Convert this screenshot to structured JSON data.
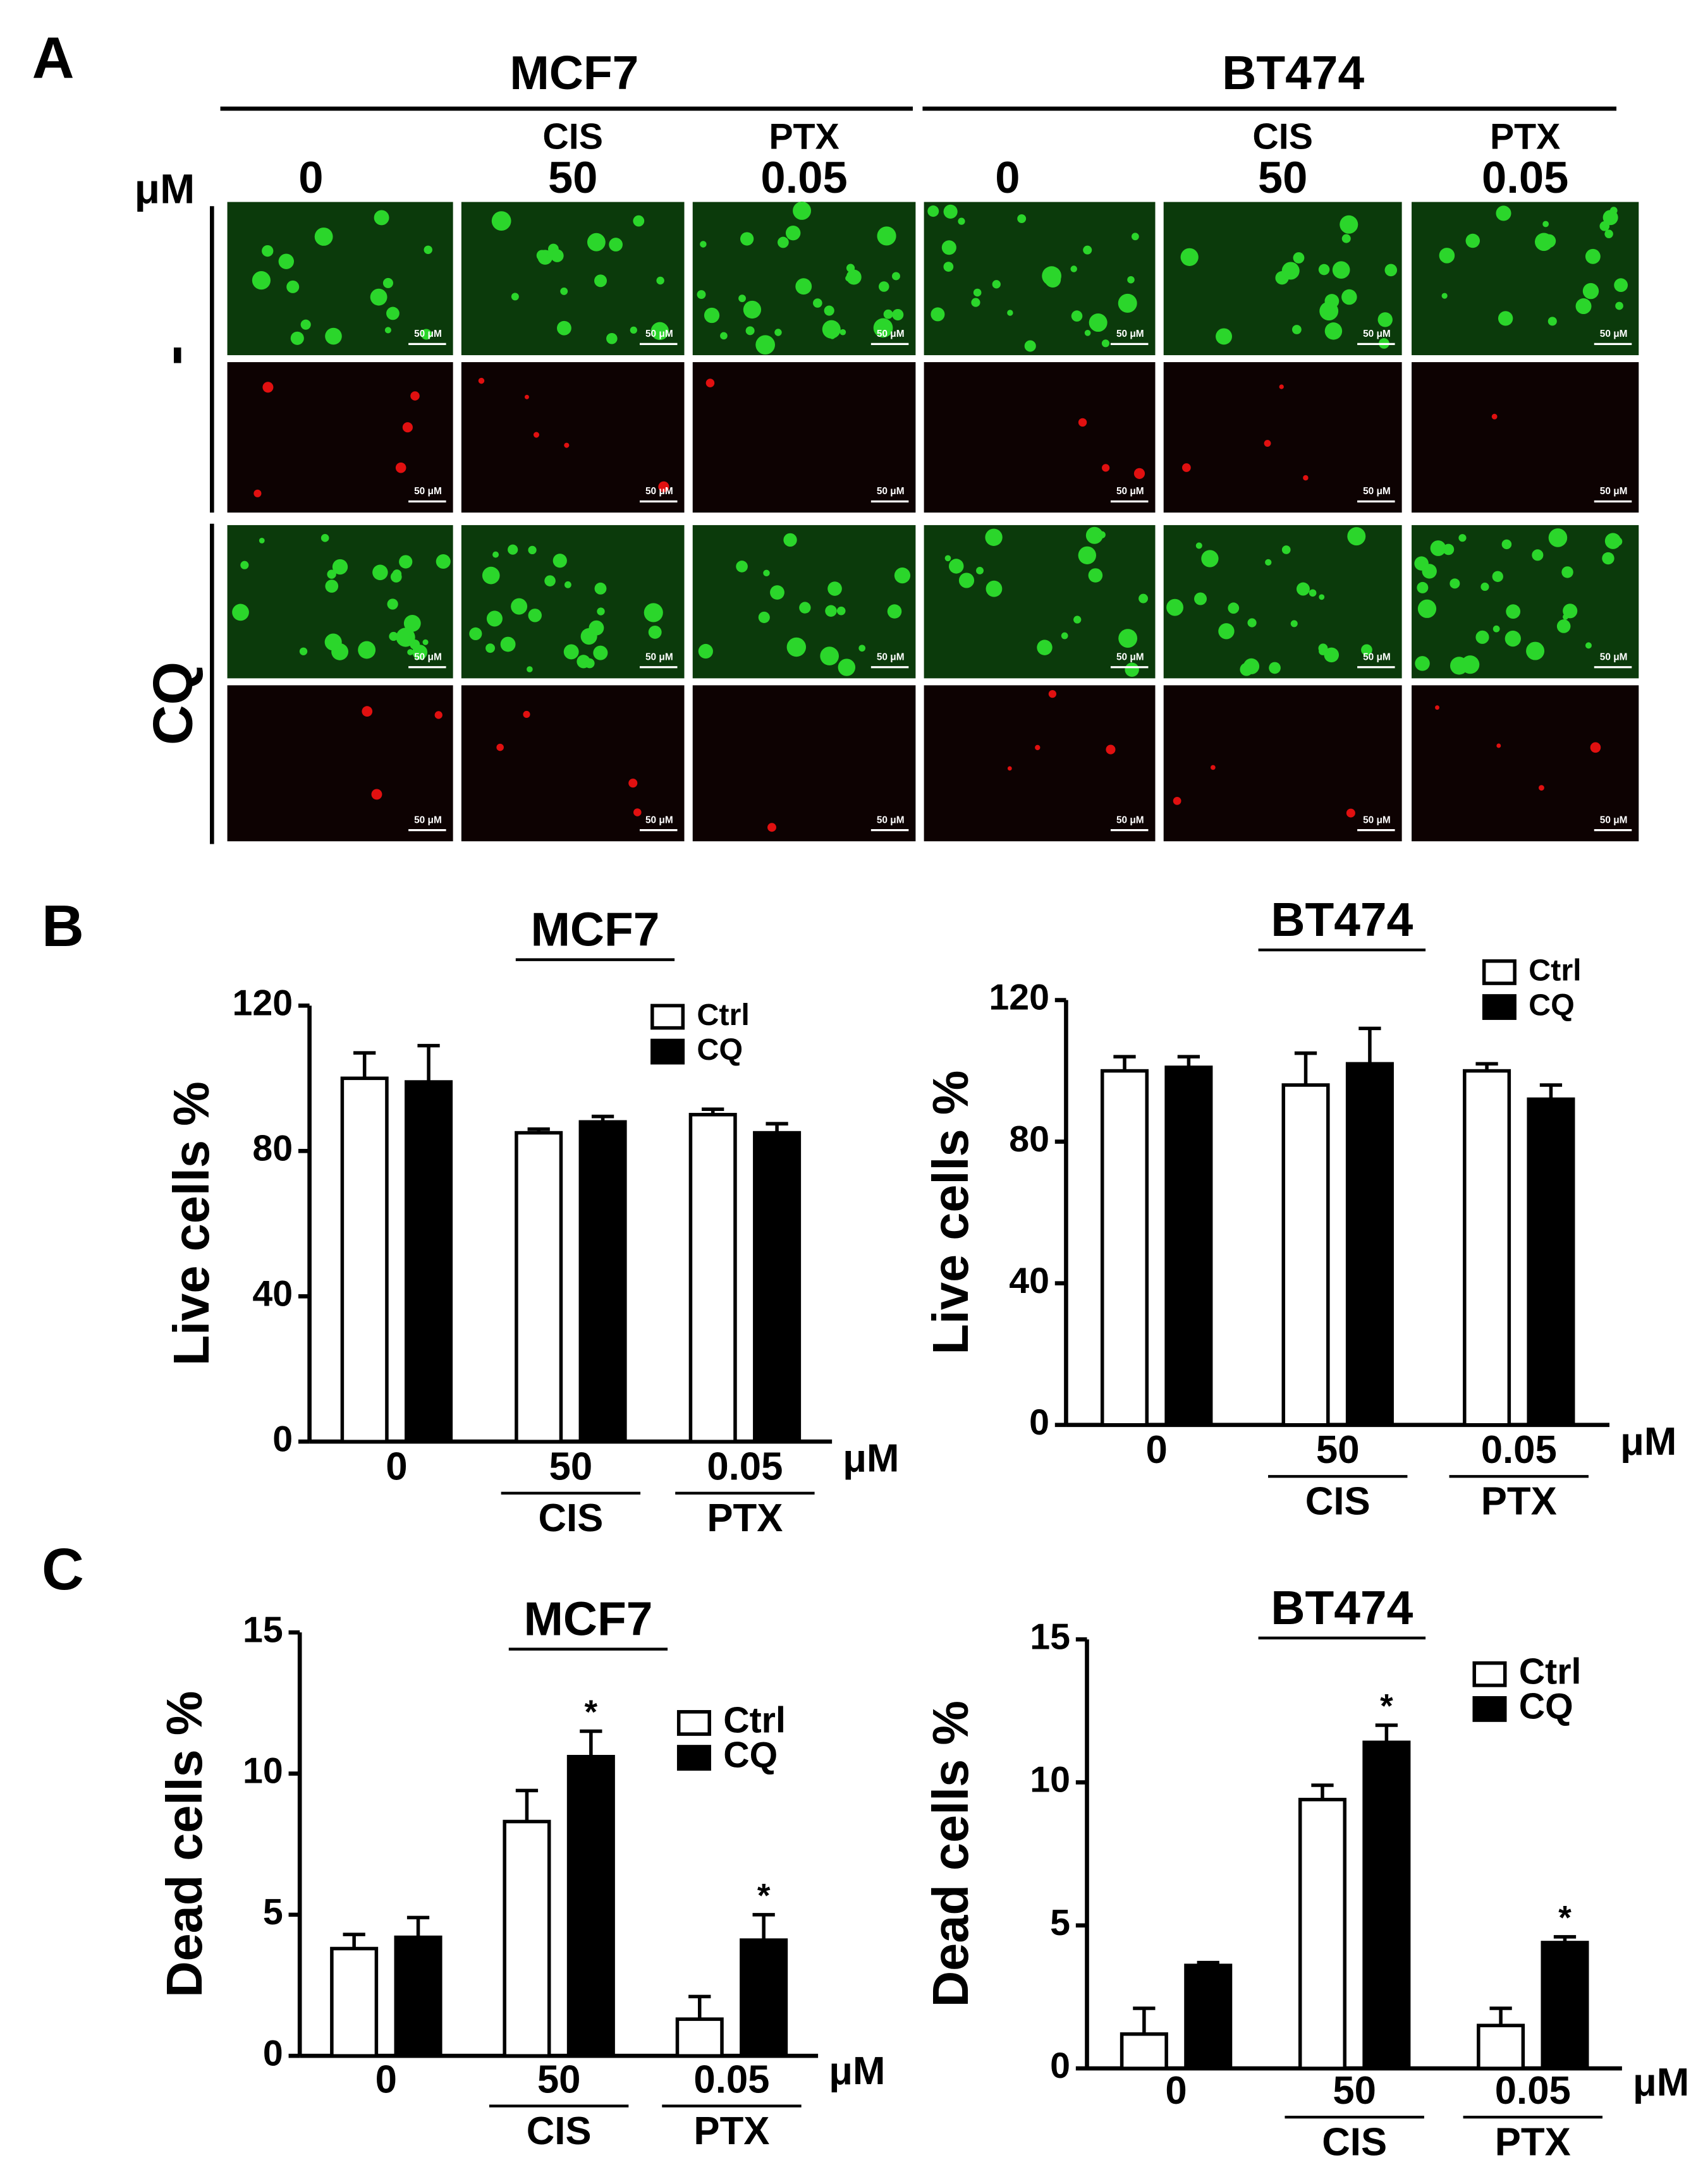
{
  "panel_labels": [
    "A",
    "B",
    "C"
  ],
  "panel_a": {
    "cell_lines": [
      "MCF7",
      "BT474"
    ],
    "unit": "μM",
    "treatments": [
      {
        "drug": null,
        "dose": "0"
      },
      {
        "drug": "CIS",
        "dose": "50"
      },
      {
        "drug": "PTX",
        "dose": "0.05"
      }
    ],
    "rows": [
      "-",
      "CQ"
    ],
    "scale_bar": "50 μM"
  },
  "chart_data": [
    {
      "type": "bar",
      "title": "MCF7",
      "y_label": "Live cells %",
      "categories": [
        "0",
        "50",
        "0.05"
      ],
      "groups": [
        null,
        "CIS",
        "PTX"
      ],
      "unit": "μM",
      "ylim": [
        0,
        120
      ],
      "yticks": [
        0,
        40,
        80,
        120
      ],
      "series": [
        {
          "name": "Ctrl",
          "color": "#ffffff",
          "values": [
            100,
            85,
            90
          ],
          "errors": [
            7,
            1,
            1.5
          ]
        },
        {
          "name": "CQ",
          "color": "#000000",
          "values": [
            99,
            88,
            85
          ],
          "errors": [
            10,
            1.5,
            2.5
          ]
        }
      ]
    },
    {
      "type": "bar",
      "title": "BT474",
      "y_label": "Live cells %",
      "categories": [
        "0",
        "50",
        "0.05"
      ],
      "groups": [
        null,
        "CIS",
        "PTX"
      ],
      "unit": "μM",
      "ylim": [
        0,
        120
      ],
      "yticks": [
        0,
        40,
        80,
        120
      ],
      "series": [
        {
          "name": "Ctrl",
          "color": "#ffffff",
          "values": [
            100,
            96,
            100
          ],
          "errors": [
            4,
            9,
            2
          ]
        },
        {
          "name": "CQ",
          "color": "#000000",
          "values": [
            101,
            102,
            92
          ],
          "errors": [
            3,
            10,
            4
          ]
        }
      ]
    },
    {
      "type": "bar",
      "title": "MCF7",
      "y_label": "Dead cells %",
      "categories": [
        "0",
        "50",
        "0.05"
      ],
      "groups": [
        null,
        "CIS",
        "PTX"
      ],
      "unit": "μM",
      "ylim": [
        0,
        15
      ],
      "yticks": [
        0,
        5,
        10,
        15
      ],
      "series": [
        {
          "name": "Ctrl",
          "color": "#ffffff",
          "values": [
            3.8,
            8.3,
            1.3
          ],
          "errors": [
            0.5,
            1.1,
            0.8
          ]
        },
        {
          "name": "CQ",
          "color": "#000000",
          "values": [
            4.2,
            10.6,
            4.1
          ],
          "errors": [
            0.7,
            0.9,
            0.9
          ],
          "significance": [
            null,
            "*",
            "*"
          ]
        }
      ]
    },
    {
      "type": "bar",
      "title": "BT474",
      "y_label": "Dead cells %",
      "categories": [
        "0",
        "50",
        "0.05"
      ],
      "groups": [
        null,
        "CIS",
        "PTX"
      ],
      "unit": "μM",
      "ylim": [
        0,
        15
      ],
      "yticks": [
        0,
        5,
        10,
        15
      ],
      "series": [
        {
          "name": "Ctrl",
          "color": "#ffffff",
          "values": [
            1.2,
            9.4,
            1.5
          ],
          "errors": [
            0.9,
            0.5,
            0.6
          ]
        },
        {
          "name": "CQ",
          "color": "#000000",
          "values": [
            3.6,
            11.4,
            4.4
          ],
          "errors": [
            0.1,
            0.6,
            0.2
          ],
          "significance": [
            null,
            "*",
            "*"
          ]
        }
      ]
    }
  ]
}
